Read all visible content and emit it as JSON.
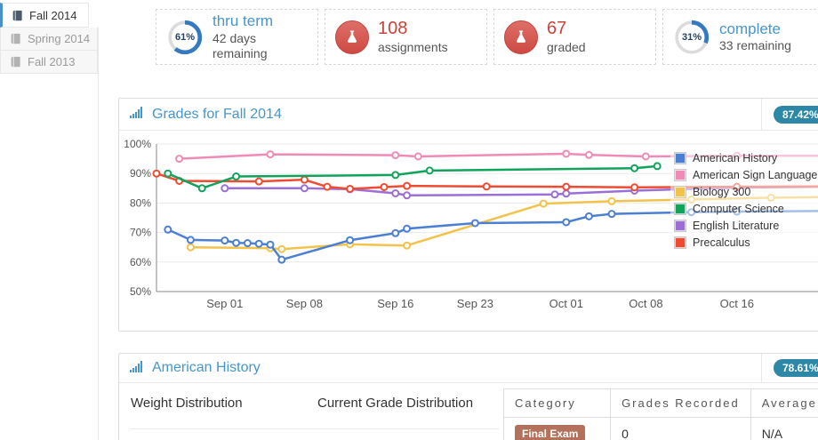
{
  "sidebar": {
    "tabs": [
      {
        "label": "Fall 2014",
        "active": true
      },
      {
        "label": "Spring 2014",
        "active": false
      },
      {
        "label": "Fall 2013",
        "active": false
      }
    ]
  },
  "stats": [
    {
      "kind": "ring",
      "percent": 61,
      "percent_label": "61%",
      "title": "thru term",
      "subtitle": "42 days remaining"
    },
    {
      "kind": "flask",
      "value": "108",
      "label": "assignments"
    },
    {
      "kind": "flask",
      "value": "67",
      "label": "graded"
    },
    {
      "kind": "ring",
      "percent": 31,
      "percent_label": "31%",
      "title": "complete",
      "subtitle": "33 remaining"
    }
  ],
  "grades_panel": {
    "title": "Grades for Fall 2014",
    "badge": "87.42%"
  },
  "chart_data": {
    "type": "line",
    "title": "Grades for Fall 2014",
    "overall_grade_badge": "87.42%",
    "x_unit": "days since Aug 26, 2014",
    "x_domain": [
      0,
      58.2
    ],
    "ylim": [
      50,
      100
    ],
    "y_tick_step": 10,
    "grid": true,
    "legend_position": "top-right",
    "x_ticks": [
      {
        "label": "Sep 01",
        "day": 6
      },
      {
        "label": "Sep 08",
        "day": 13
      },
      {
        "label": "Sep 16",
        "day": 21
      },
      {
        "label": "Sep 23",
        "day": 28
      },
      {
        "label": "Oct 01",
        "day": 36
      },
      {
        "label": "Oct 08",
        "day": 43
      },
      {
        "label": "Oct 16",
        "day": 51
      }
    ],
    "series": [
      {
        "name": "American History",
        "color": "#4a7fd4",
        "points": [
          [
            1,
            71
          ],
          [
            3,
            67.5
          ],
          [
            6,
            67.3
          ],
          [
            7,
            66.5
          ],
          [
            8,
            66.4
          ],
          [
            9,
            66.2
          ],
          [
            10,
            65.9
          ],
          [
            11,
            60.8
          ],
          [
            17,
            67.4
          ],
          [
            21,
            69.8
          ],
          [
            22,
            71.3
          ],
          [
            28,
            73.2
          ],
          [
            36,
            73.5
          ],
          [
            38,
            75.5
          ],
          [
            40,
            76.3
          ],
          [
            47,
            76.9
          ],
          [
            51,
            77.1
          ]
        ],
        "tail": [
          58.2,
          77.3
        ]
      },
      {
        "name": "American Sign Language",
        "color": "#f08bb5",
        "points": [
          [
            2,
            95
          ],
          [
            10,
            96.5
          ],
          [
            21,
            96.2
          ],
          [
            23,
            95.8
          ],
          [
            36,
            96.7
          ],
          [
            38,
            96.3
          ],
          [
            43,
            95.8
          ],
          [
            51,
            96
          ]
        ],
        "tail": [
          58.2,
          96
        ]
      },
      {
        "name": "Biology 300",
        "color": "#f3c24b",
        "points": [
          [
            3,
            65
          ],
          [
            10,
            64.7
          ],
          [
            11,
            64.4
          ],
          [
            17,
            66
          ],
          [
            22,
            65.6
          ],
          [
            34,
            79.8
          ],
          [
            40,
            80.6
          ],
          [
            47,
            81.2
          ],
          [
            54,
            81.8
          ]
        ],
        "tail": [
          58.2,
          82
        ]
      },
      {
        "name": "Computer Science",
        "color": "#10a35b",
        "points": [
          [
            1,
            90
          ],
          [
            4,
            85
          ],
          [
            7,
            89
          ],
          [
            21,
            89.5
          ],
          [
            24,
            91
          ],
          [
            42,
            91.8
          ],
          [
            44,
            92.5
          ]
        ],
        "tail": null
      },
      {
        "name": "English Literature",
        "color": "#9b6fd6",
        "points": [
          [
            6,
            85
          ],
          [
            13,
            85
          ],
          [
            17,
            84.7
          ],
          [
            21,
            83.3
          ],
          [
            22,
            82.6
          ],
          [
            35,
            82.9
          ],
          [
            36,
            83.2
          ],
          [
            42,
            84.2
          ],
          [
            51,
            85.2
          ]
        ],
        "tail": [
          58.2,
          85.5
        ]
      },
      {
        "name": "Precalculus",
        "color": "#ee4b32",
        "points": [
          [
            0,
            90
          ],
          [
            2,
            87.5
          ],
          [
            9,
            87.3
          ],
          [
            13,
            87.9
          ],
          [
            15,
            85.5
          ],
          [
            17,
            84.8
          ],
          [
            20,
            85.4
          ],
          [
            22,
            85.8
          ],
          [
            29,
            85.6
          ],
          [
            36,
            85.5
          ],
          [
            42,
            85.3
          ],
          [
            51,
            85.5
          ]
        ],
        "tail": [
          58.2,
          85.6
        ]
      }
    ]
  },
  "history_panel": {
    "title": "American History",
    "badge": "78.61%",
    "weight_label": "Weight Distribution",
    "current_label": "Current Grade Distribution",
    "table": {
      "headers": [
        "Category",
        "Grades Recorded",
        "Average Grade"
      ],
      "rows": [
        {
          "category": "Final Exam",
          "grades_recorded": "0",
          "average_grade": "N/A"
        }
      ]
    }
  },
  "colors": {
    "link_blue": "#4596cc",
    "badge_teal": "#2d87a6",
    "stat_red": "#c9433a",
    "ring_blue": "#3579bf",
    "ring_track": "#dcdcdc",
    "final_exam_badge": "#b3705a",
    "active_tab_accent": "#4a90c9"
  }
}
